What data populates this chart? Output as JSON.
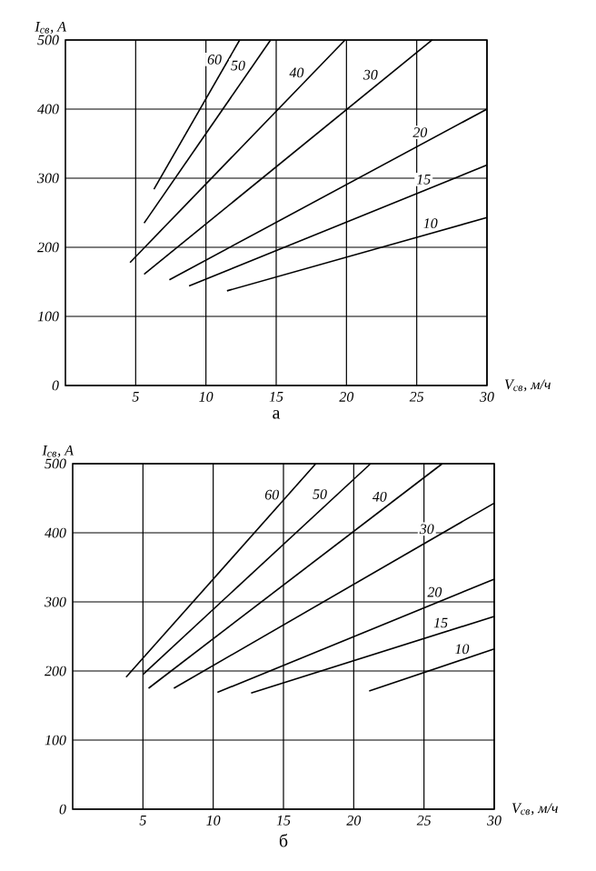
{
  "chart_data": [
    {
      "type": "line",
      "title": "а",
      "xlabel": "V$_{св}$, м/ч",
      "ylabel": "I$_{св}$, А",
      "xlim": [
        0,
        30
      ],
      "ylim": [
        0,
        500
      ],
      "xticks": [
        5,
        10,
        15,
        20,
        25,
        30
      ],
      "yticks": [
        0,
        100,
        200,
        300,
        400,
        500
      ],
      "grid": true,
      "marker": "none",
      "line_style": "solid",
      "series": [
        {
          "name": "60",
          "color": "#000000",
          "x": [
            6.3,
            12.4
          ],
          "values": [
            284,
            500
          ]
        },
        {
          "name": "50",
          "color": "#000000",
          "x": [
            5.6,
            14.6
          ],
          "values": [
            235,
            500
          ]
        },
        {
          "name": "40",
          "color": "#000000",
          "x": [
            4.6,
            19.9
          ],
          "values": [
            178,
            500
          ]
        },
        {
          "name": "30",
          "color": "#000000",
          "x": [
            5.6,
            26.1
          ],
          "values": [
            161,
            500
          ]
        },
        {
          "name": "20",
          "color": "#000000",
          "x": [
            7.4,
            30
          ],
          "values": [
            153,
            400
          ]
        },
        {
          "name": "15",
          "color": "#000000",
          "x": [
            8.8,
            30
          ],
          "values": [
            144,
            319
          ]
        },
        {
          "name": "10",
          "color": "#000000",
          "x": [
            11.5,
            30
          ],
          "values": [
            137,
            243
          ]
        }
      ]
    },
    {
      "type": "line",
      "title": "б",
      "xlabel": "V$_{св}$, м/ч",
      "ylabel": "I$_{св}$, А",
      "xlim": [
        0,
        30
      ],
      "ylim": [
        0,
        500
      ],
      "xticks": [
        5,
        10,
        15,
        20,
        25,
        30
      ],
      "yticks": [
        0,
        100,
        200,
        300,
        400,
        500
      ],
      "grid": true,
      "marker": "none",
      "line_style": "solid",
      "series": [
        {
          "name": "60",
          "color": "#000000",
          "x": [
            3.8,
            17.3
          ],
          "values": [
            191,
            500
          ]
        },
        {
          "name": "50",
          "color": "#000000",
          "x": [
            5.0,
            21.2
          ],
          "values": [
            195,
            500
          ]
        },
        {
          "name": "40",
          "color": "#000000",
          "x": [
            5.4,
            26.3
          ],
          "values": [
            175,
            500
          ]
        },
        {
          "name": "30",
          "color": "#000000",
          "x": [
            7.2,
            30
          ],
          "values": [
            175,
            443
          ]
        },
        {
          "name": "20",
          "color": "#000000",
          "x": [
            10.3,
            30
          ],
          "values": [
            169,
            333
          ]
        },
        {
          "name": "15",
          "color": "#000000",
          "x": [
            12.7,
            30
          ],
          "values": [
            168,
            279
          ]
        },
        {
          "name": "10",
          "color": "#000000",
          "x": [
            21.1,
            30
          ],
          "values": [
            171,
            232
          ]
        }
      ]
    }
  ]
}
